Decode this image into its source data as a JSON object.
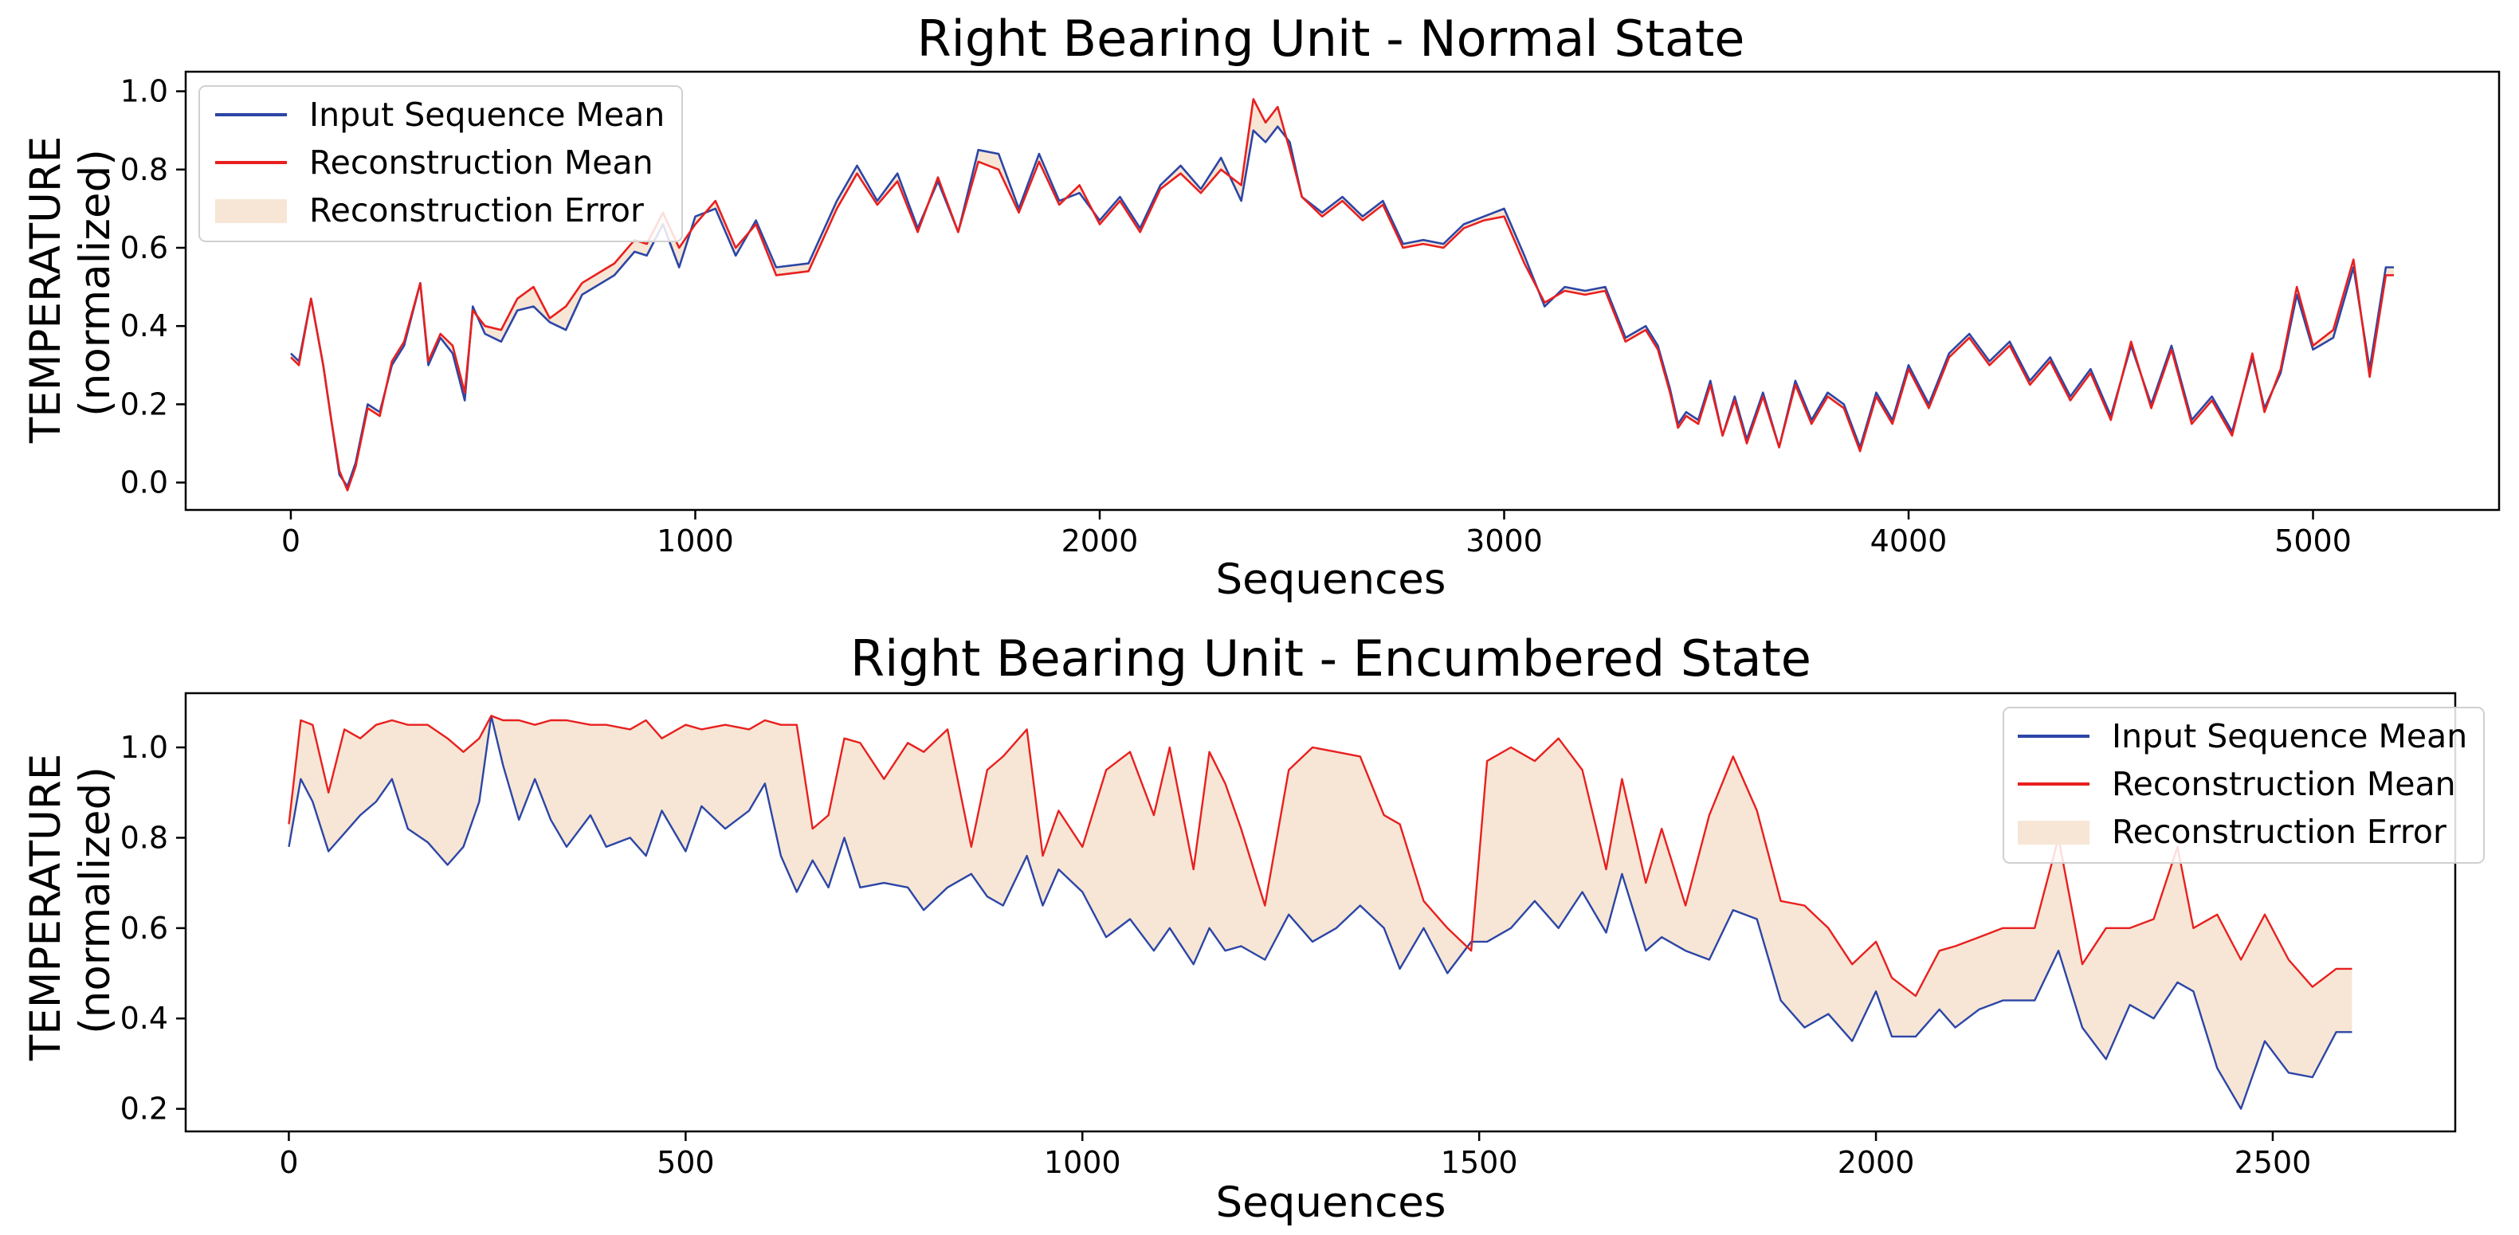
{
  "chart_data": [
    {
      "type": "line",
      "title": "Right Bearing Unit - Normal State",
      "xlabel": "Sequences",
      "ylabel": "TEMPERATURE\n(normalized)",
      "ylabel_lines": [
        "TEMPERATURE",
        "(normalized)"
      ],
      "xlim": [
        -260,
        5460
      ],
      "ylim": [
        -0.07,
        1.05
      ],
      "xticks": [
        0,
        1000,
        2000,
        3000,
        4000,
        5000
      ],
      "xtick_labels": [
        "0",
        "1000",
        "2000",
        "3000",
        "4000",
        "5000"
      ],
      "yticks": [
        0.0,
        0.2,
        0.4,
        0.6,
        0.8,
        1.0
      ],
      "ytick_labels": [
        "0.0",
        "0.2",
        "0.4",
        "0.6",
        "0.8",
        "1.0"
      ],
      "legend_position": "top-left",
      "legend": [
        "Input Sequence Mean",
        "Reconstruction Mean",
        "Reconstruction Error"
      ],
      "colors": {
        "input": "#2c46a6",
        "reconstruction": "#e8201f",
        "error": "#f7e6d5"
      },
      "x": [
        0,
        20,
        50,
        80,
        100,
        120,
        140,
        160,
        190,
        220,
        250,
        280,
        320,
        340,
        370,
        400,
        430,
        450,
        480,
        520,
        560,
        600,
        640,
        680,
        720,
        800,
        850,
        880,
        920,
        960,
        1000,
        1050,
        1100,
        1150,
        1200,
        1280,
        1350,
        1400,
        1450,
        1500,
        1550,
        1600,
        1650,
        1700,
        1750,
        1800,
        1850,
        1900,
        1950,
        2000,
        2050,
        2100,
        2150,
        2200,
        2250,
        2300,
        2350,
        2380,
        2410,
        2440,
        2470,
        2500,
        2550,
        2600,
        2650,
        2700,
        2750,
        2800,
        2850,
        2900,
        2950,
        3000,
        3050,
        3100,
        3150,
        3200,
        3250,
        3300,
        3350,
        3380,
        3410,
        3430,
        3450,
        3480,
        3510,
        3540,
        3570,
        3600,
        3640,
        3680,
        3720,
        3760,
        3800,
        3840,
        3880,
        3920,
        3960,
        4000,
        4050,
        4100,
        4150,
        4200,
        4250,
        4300,
        4350,
        4400,
        4450,
        4500,
        4550,
        4600,
        4650,
        4700,
        4750,
        4800,
        4850,
        4880,
        4920,
        4960,
        5000,
        5050,
        5100,
        5140,
        5180,
        5200
      ],
      "series": [
        {
          "name": "Input Sequence Mean",
          "values": [
            0.33,
            0.31,
            0.47,
            0.3,
            0.16,
            0.02,
            -0.01,
            0.05,
            0.2,
            0.18,
            0.3,
            0.35,
            0.51,
            0.3,
            0.37,
            0.33,
            0.21,
            0.45,
            0.38,
            0.36,
            0.44,
            0.45,
            0.41,
            0.39,
            0.48,
            0.53,
            0.59,
            0.58,
            0.66,
            0.55,
            0.68,
            0.7,
            0.58,
            0.67,
            0.55,
            0.56,
            0.72,
            0.81,
            0.72,
            0.79,
            0.65,
            0.77,
            0.64,
            0.85,
            0.84,
            0.7,
            0.84,
            0.72,
            0.74,
            0.67,
            0.73,
            0.65,
            0.76,
            0.81,
            0.75,
            0.83,
            0.72,
            0.9,
            0.87,
            0.91,
            0.87,
            0.73,
            0.69,
            0.73,
            0.68,
            0.72,
            0.61,
            0.62,
            0.61,
            0.66,
            0.68,
            0.7,
            0.58,
            0.45,
            0.5,
            0.49,
            0.5,
            0.37,
            0.4,
            0.35,
            0.24,
            0.15,
            0.18,
            0.16,
            0.26,
            0.12,
            0.22,
            0.11,
            0.23,
            0.09,
            0.26,
            0.16,
            0.23,
            0.2,
            0.09,
            0.23,
            0.16,
            0.3,
            0.2,
            0.33,
            0.38,
            0.31,
            0.36,
            0.26,
            0.32,
            0.22,
            0.29,
            0.17,
            0.35,
            0.2,
            0.35,
            0.16,
            0.22,
            0.13,
            0.32,
            0.19,
            0.28,
            0.48,
            0.34,
            0.37,
            0.55,
            0.29,
            0.55,
            0.55
          ]
        },
        {
          "name": "Reconstruction Mean",
          "values": [
            0.32,
            0.3,
            0.47,
            0.3,
            0.16,
            0.03,
            -0.02,
            0.04,
            0.19,
            0.17,
            0.31,
            0.36,
            0.51,
            0.31,
            0.38,
            0.35,
            0.23,
            0.44,
            0.4,
            0.39,
            0.47,
            0.5,
            0.42,
            0.45,
            0.51,
            0.56,
            0.62,
            0.61,
            0.69,
            0.6,
            0.66,
            0.72,
            0.6,
            0.66,
            0.53,
            0.54,
            0.7,
            0.79,
            0.71,
            0.77,
            0.64,
            0.78,
            0.64,
            0.82,
            0.8,
            0.69,
            0.82,
            0.71,
            0.76,
            0.66,
            0.72,
            0.64,
            0.75,
            0.79,
            0.74,
            0.8,
            0.76,
            0.98,
            0.92,
            0.96,
            0.85,
            0.73,
            0.68,
            0.72,
            0.67,
            0.71,
            0.6,
            0.61,
            0.6,
            0.65,
            0.67,
            0.68,
            0.56,
            0.46,
            0.49,
            0.48,
            0.49,
            0.36,
            0.39,
            0.34,
            0.23,
            0.14,
            0.17,
            0.15,
            0.25,
            0.12,
            0.21,
            0.1,
            0.22,
            0.09,
            0.25,
            0.15,
            0.22,
            0.19,
            0.08,
            0.22,
            0.15,
            0.29,
            0.19,
            0.32,
            0.37,
            0.3,
            0.35,
            0.25,
            0.31,
            0.21,
            0.28,
            0.16,
            0.36,
            0.19,
            0.34,
            0.15,
            0.21,
            0.12,
            0.33,
            0.18,
            0.29,
            0.5,
            0.35,
            0.39,
            0.57,
            0.27,
            0.53,
            0.53
          ]
        }
      ]
    },
    {
      "type": "line",
      "title": "Right Bearing Unit - Encumbered State",
      "xlabel": "Sequences",
      "ylabel": "TEMPERATURE\n(normalized)",
      "ylabel_lines": [
        "TEMPERATURE",
        "(normalized)"
      ],
      "xlim": [
        -130,
        2730
      ],
      "ylim": [
        0.15,
        1.12
      ],
      "xticks": [
        0,
        500,
        1000,
        1500,
        2000,
        2500
      ],
      "xtick_labels": [
        "0",
        "500",
        "1000",
        "1500",
        "2000",
        "2500"
      ],
      "yticks": [
        0.2,
        0.4,
        0.6,
        0.8,
        1.0
      ],
      "ytick_labels": [
        "0.2",
        "0.4",
        "0.6",
        "0.8",
        "1.0"
      ],
      "legend_position": "top-right",
      "legend": [
        "Input Sequence Mean",
        "Reconstruction Mean",
        "Reconstruction Error"
      ],
      "colors": {
        "input": "#2c46a6",
        "reconstruction": "#e8201f",
        "error": "#f7e6d5"
      },
      "x": [
        0,
        15,
        30,
        50,
        70,
        90,
        110,
        130,
        150,
        175,
        200,
        220,
        240,
        255,
        270,
        290,
        310,
        330,
        350,
        380,
        400,
        430,
        450,
        470,
        500,
        520,
        550,
        580,
        600,
        620,
        640,
        660,
        680,
        700,
        720,
        750,
        780,
        800,
        830,
        860,
        880,
        900,
        930,
        950,
        970,
        1000,
        1030,
        1060,
        1090,
        1110,
        1140,
        1160,
        1180,
        1200,
        1230,
        1260,
        1290,
        1320,
        1350,
        1380,
        1400,
        1430,
        1460,
        1490,
        1510,
        1540,
        1570,
        1600,
        1630,
        1660,
        1680,
        1710,
        1730,
        1760,
        1790,
        1820,
        1850,
        1880,
        1910,
        1940,
        1970,
        2000,
        2020,
        2050,
        2080,
        2100,
        2130,
        2160,
        2200,
        2230,
        2260,
        2290,
        2320,
        2350,
        2380,
        2400,
        2430,
        2460,
        2490,
        2520,
        2550,
        2580,
        2600
      ],
      "series": [
        {
          "name": "Input Sequence Mean",
          "values": [
            0.78,
            0.93,
            0.88,
            0.77,
            0.81,
            0.85,
            0.88,
            0.93,
            0.82,
            0.79,
            0.74,
            0.78,
            0.88,
            1.07,
            0.96,
            0.84,
            0.93,
            0.84,
            0.78,
            0.85,
            0.78,
            0.8,
            0.76,
            0.86,
            0.77,
            0.87,
            0.82,
            0.86,
            0.92,
            0.76,
            0.68,
            0.75,
            0.69,
            0.8,
            0.69,
            0.7,
            0.69,
            0.64,
            0.69,
            0.72,
            0.67,
            0.65,
            0.76,
            0.65,
            0.73,
            0.68,
            0.58,
            0.62,
            0.55,
            0.6,
            0.52,
            0.6,
            0.55,
            0.56,
            0.53,
            0.63,
            0.57,
            0.6,
            0.65,
            0.6,
            0.51,
            0.6,
            0.5,
            0.57,
            0.57,
            0.6,
            0.66,
            0.6,
            0.68,
            0.59,
            0.72,
            0.55,
            0.58,
            0.55,
            0.53,
            0.64,
            0.62,
            0.44,
            0.38,
            0.41,
            0.35,
            0.46,
            0.36,
            0.36,
            0.42,
            0.38,
            0.42,
            0.44,
            0.44,
            0.55,
            0.38,
            0.31,
            0.43,
            0.4,
            0.48,
            0.46,
            0.29,
            0.2,
            0.35,
            0.28,
            0.27,
            0.37,
            0.37
          ]
        },
        {
          "name": "Reconstruction Mean",
          "values": [
            0.83,
            1.06,
            1.05,
            0.9,
            1.04,
            1.02,
            1.05,
            1.06,
            1.05,
            1.05,
            1.02,
            0.99,
            1.02,
            1.07,
            1.06,
            1.06,
            1.05,
            1.06,
            1.06,
            1.05,
            1.05,
            1.04,
            1.06,
            1.02,
            1.05,
            1.04,
            1.05,
            1.04,
            1.06,
            1.05,
            1.05,
            0.82,
            0.85,
            1.02,
            1.01,
            0.93,
            1.01,
            0.99,
            1.04,
            0.78,
            0.95,
            0.98,
            1.04,
            0.76,
            0.86,
            0.78,
            0.95,
            0.99,
            0.85,
            1.0,
            0.73,
            0.99,
            0.92,
            0.82,
            0.65,
            0.95,
            1.0,
            0.99,
            0.98,
            0.85,
            0.83,
            0.66,
            0.6,
            0.55,
            0.97,
            1.0,
            0.97,
            1.02,
            0.95,
            0.73,
            0.93,
            0.7,
            0.82,
            0.65,
            0.85,
            0.98,
            0.86,
            0.66,
            0.65,
            0.6,
            0.52,
            0.57,
            0.49,
            0.45,
            0.55,
            0.56,
            0.58,
            0.6,
            0.6,
            0.8,
            0.52,
            0.6,
            0.6,
            0.62,
            0.78,
            0.6,
            0.63,
            0.53,
            0.63,
            0.53,
            0.47,
            0.51,
            0.51
          ]
        }
      ]
    }
  ]
}
